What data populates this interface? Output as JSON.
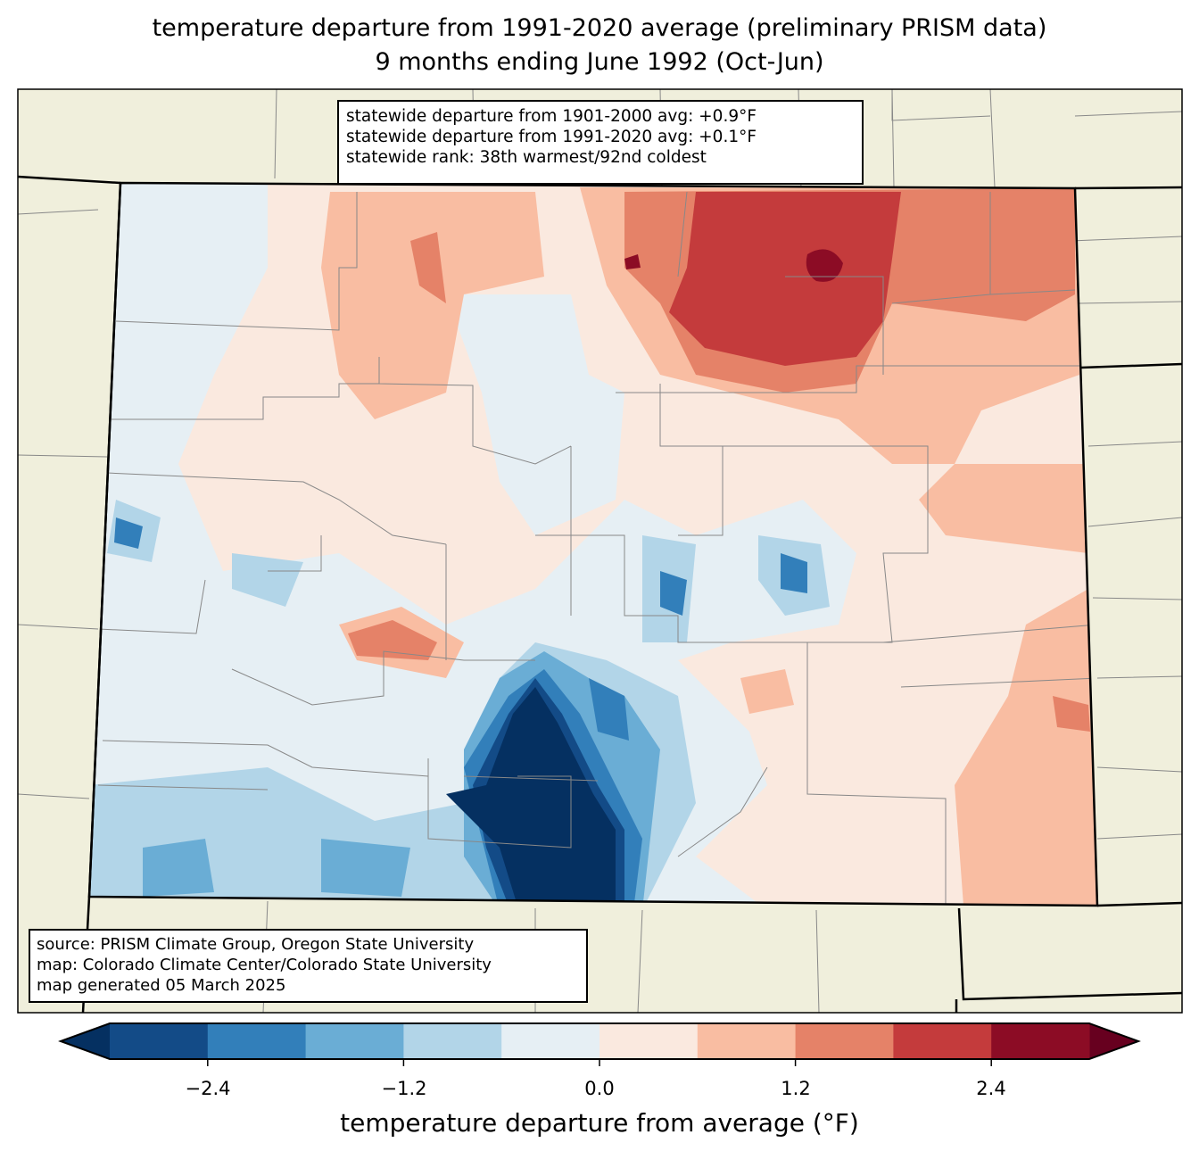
{
  "title": {
    "line1": "temperature departure from 1991-2020 average (preliminary PRISM data)",
    "line2": "9 months ending June 1992 (Oct-Jun)"
  },
  "info_box": [
    "statewide departure from 1901-2000 avg: +0.9°F",
    "statewide departure from 1991-2020 avg: +0.1°F",
    "statewide rank: 38th warmest/92nd coldest"
  ],
  "source_box": [
    "source: PRISM Climate Group, Oregon State University",
    "map: Colorado Climate Center/Colorado State University",
    "map generated 05 March 2025"
  ],
  "colorbar": {
    "label": "temperature departure from average (°F)",
    "ticks": [
      "−2.4",
      "−1.2",
      "0.0",
      "1.2",
      "2.4"
    ],
    "levels": [
      -3.0,
      -2.4,
      -1.8,
      -1.2,
      -0.6,
      0.0,
      0.6,
      1.2,
      1.8,
      2.4,
      3.0
    ],
    "colors": [
      "#134b87",
      "#327fba",
      "#6aadd5",
      "#b2d5e8",
      "#e6eff4",
      "#fae9df",
      "#f9bda2",
      "#e58268",
      "#c43b3c",
      "#8c0c25"
    ],
    "under_color": "#053061",
    "over_color": "#67001f"
  },
  "map_colors": {
    "land_outside": "#f0efdc",
    "county_lines": "#808080"
  }
}
